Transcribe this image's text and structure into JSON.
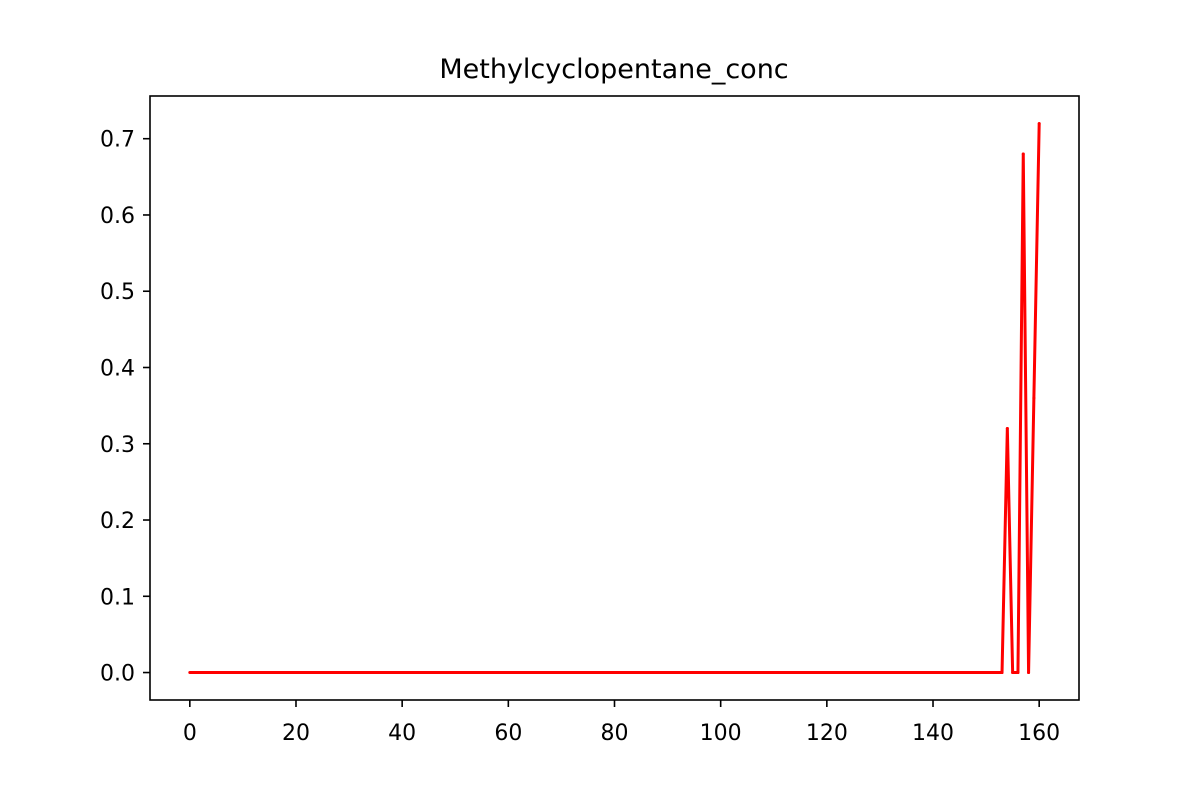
{
  "chart_data": {
    "type": "line",
    "title": "Methylcyclopentane_conc",
    "xlabel": "",
    "ylabel": "",
    "xlim": [
      -7.5,
      167.5
    ],
    "ylim": [
      -0.036,
      0.756
    ],
    "xticks": [
      0,
      20,
      40,
      60,
      80,
      100,
      120,
      140,
      160
    ],
    "xtick_labels": [
      "0",
      "20",
      "40",
      "60",
      "80",
      "100",
      "120",
      "140",
      "160"
    ],
    "yticks": [
      0.0,
      0.1,
      0.2,
      0.3,
      0.4,
      0.5,
      0.6,
      0.7
    ],
    "ytick_labels": [
      "0.0",
      "0.1",
      "0.2",
      "0.3",
      "0.4",
      "0.5",
      "0.6",
      "0.7"
    ],
    "grid": false,
    "legend": "none",
    "color": "#ff0000",
    "series": [
      {
        "x": [
          0,
          153,
          154,
          155,
          156,
          157,
          158,
          159,
          160
        ],
        "y": [
          0.0,
          0.0,
          0.32,
          0.0,
          0.0,
          0.68,
          0.0,
          0.36,
          0.72
        ]
      }
    ]
  }
}
